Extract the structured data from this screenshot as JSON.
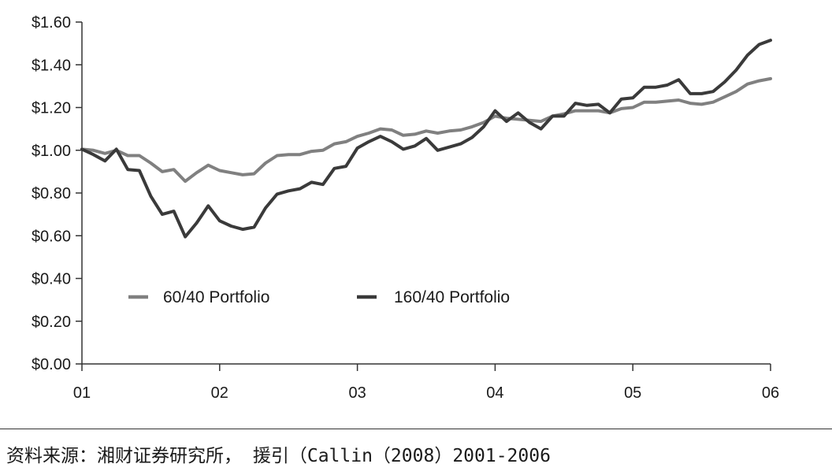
{
  "chart_data": {
    "type": "line",
    "title": "",
    "xlabel": "",
    "ylabel": "",
    "x_ticks": [
      "01",
      "02",
      "03",
      "04",
      "05",
      "06"
    ],
    "y_ticks": [
      "$0.00",
      "$0.20",
      "$0.40",
      "$0.60",
      "$0.80",
      "$1.00",
      "$1.20",
      "$1.40",
      "$1.60"
    ],
    "xlim": [
      2001,
      2006
    ],
    "ylim": [
      0,
      1.6
    ],
    "grid": false,
    "legend_position": "lower-left inside plot",
    "x": [
      2001.0,
      2001.083,
      2001.167,
      2001.25,
      2001.333,
      2001.417,
      2001.5,
      2001.583,
      2001.667,
      2001.75,
      2001.833,
      2001.917,
      2002.0,
      2002.083,
      2002.167,
      2002.25,
      2002.333,
      2002.417,
      2002.5,
      2002.583,
      2002.667,
      2002.75,
      2002.833,
      2002.917,
      2003.0,
      2003.083,
      2003.167,
      2003.25,
      2003.333,
      2003.417,
      2003.5,
      2003.583,
      2003.667,
      2003.75,
      2003.833,
      2003.917,
      2004.0,
      2004.083,
      2004.167,
      2004.25,
      2004.333,
      2004.417,
      2004.5,
      2004.583,
      2004.667,
      2004.75,
      2004.833,
      2004.917,
      2005.0,
      2005.083,
      2005.167,
      2005.25,
      2005.333,
      2005.417,
      2005.5,
      2005.583,
      2005.667,
      2005.75,
      2005.833,
      2005.917,
      2006.0
    ],
    "series": [
      {
        "name": "60/40 Portfolio",
        "color": "#808080",
        "values": [
          1.005,
          1.0,
          0.985,
          1.0,
          0.975,
          0.975,
          0.94,
          0.9,
          0.91,
          0.855,
          0.895,
          0.93,
          0.905,
          0.895,
          0.885,
          0.89,
          0.94,
          0.975,
          0.98,
          0.98,
          0.995,
          1.0,
          1.03,
          1.04,
          1.065,
          1.08,
          1.1,
          1.095,
          1.07,
          1.075,
          1.09,
          1.08,
          1.09,
          1.095,
          1.11,
          1.13,
          1.16,
          1.15,
          1.145,
          1.14,
          1.135,
          1.16,
          1.17,
          1.185,
          1.185,
          1.185,
          1.175,
          1.195,
          1.2,
          1.225,
          1.225,
          1.23,
          1.235,
          1.22,
          1.215,
          1.225,
          1.25,
          1.275,
          1.31,
          1.325,
          1.335
        ]
      },
      {
        "name": "160/40 Portfolio",
        "color": "#3a3a3a",
        "values": [
          1.005,
          0.98,
          0.95,
          1.005,
          0.91,
          0.905,
          0.785,
          0.7,
          0.715,
          0.595,
          0.66,
          0.74,
          0.67,
          0.645,
          0.63,
          0.64,
          0.73,
          0.795,
          0.81,
          0.82,
          0.85,
          0.84,
          0.915,
          0.925,
          1.01,
          1.04,
          1.065,
          1.04,
          1.005,
          1.02,
          1.055,
          1.0,
          1.015,
          1.03,
          1.06,
          1.11,
          1.185,
          1.135,
          1.175,
          1.13,
          1.1,
          1.16,
          1.16,
          1.22,
          1.21,
          1.215,
          1.175,
          1.24,
          1.245,
          1.295,
          1.295,
          1.305,
          1.33,
          1.265,
          1.265,
          1.275,
          1.32,
          1.375,
          1.445,
          1.495,
          1.515
        ]
      }
    ]
  },
  "footer": {
    "source_text": "资料来源：湘财证券研究所， 援引（Callin（2008）2001-2006"
  }
}
